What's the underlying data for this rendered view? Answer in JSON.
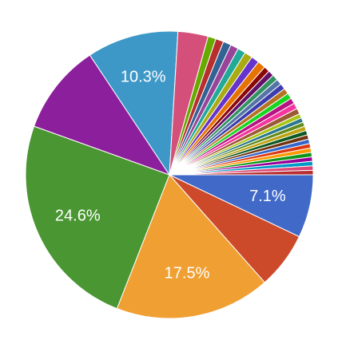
{
  "chart_data": {
    "type": "pie",
    "values": [
      7.1,
      6.4,
      17.5,
      24.6,
      10.2,
      10.3,
      3.4,
      0.9,
      0.9,
      0.9,
      0.9,
      0.9,
      0.9,
      0.9,
      0.9,
      0.65,
      0.65,
      0.65,
      0.65,
      0.65,
      0.65,
      0.65,
      0.65,
      0.65,
      0.65,
      0.5,
      0.5,
      0.5,
      0.5,
      0.5,
      0.5,
      0.5,
      0.5,
      0.5,
      0.5,
      0.5,
      0.5,
      0.5,
      0.5
    ],
    "value_labels": [
      "7.1%",
      null,
      "17.5%",
      "24.6%",
      null,
      "10.3%",
      null,
      null,
      null,
      null,
      null,
      null,
      null,
      null,
      null,
      null,
      null,
      null,
      null,
      null,
      null,
      null,
      null,
      null,
      null,
      null,
      null,
      null,
      null,
      null,
      null,
      null,
      null,
      null,
      null,
      null,
      null,
      null,
      null
    ],
    "colors": [
      "#4169c8",
      "#cc4a2a",
      "#f0a033",
      "#4a9632",
      "#8c1f9b",
      "#3e98c7",
      "#d4507a",
      "#66aa00",
      "#b82e2e",
      "#316395",
      "#994499",
      "#22aa99",
      "#aaaa11",
      "#6633cc",
      "#e67300",
      "#8b0707",
      "#651067",
      "#329262",
      "#5574a6",
      "#3b3eac",
      "#b77322",
      "#16d620",
      "#b91383",
      "#f4359e",
      "#9c5935",
      "#a9c413",
      "#2a778d",
      "#668d1c",
      "#bea413",
      "#0c5922",
      "#743411",
      "#3366cc",
      "#dc3912",
      "#ff9900",
      "#109618",
      "#990099",
      "#0099c6",
      "#dd4477",
      "#b82e2e"
    ]
  }
}
